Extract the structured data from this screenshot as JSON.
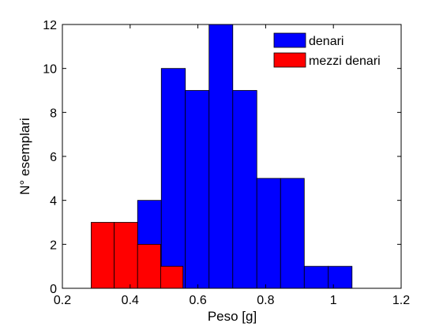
{
  "chart_data": {
    "type": "bar",
    "xlabel": "Peso [g]",
    "ylabel": "N° esemplari",
    "xlim": [
      0.2,
      1.2
    ],
    "ylim": [
      0,
      12
    ],
    "xticks": [
      "0.2",
      "0.4",
      "0.6",
      "0.8",
      "1",
      "1.2"
    ],
    "yticks": [
      "0",
      "2",
      "4",
      "6",
      "8",
      "10",
      "12"
    ],
    "grid": false,
    "legend_position": "top-right",
    "series": [
      {
        "name": "denari",
        "color": "#0000ff",
        "bins": [
          {
            "x0": 0.422,
            "x1": 0.492,
            "value": 4
          },
          {
            "x0": 0.492,
            "x1": 0.563,
            "value": 10
          },
          {
            "x0": 0.563,
            "x1": 0.633,
            "value": 9
          },
          {
            "x0": 0.633,
            "x1": 0.703,
            "value": 12
          },
          {
            "x0": 0.703,
            "x1": 0.774,
            "value": 9
          },
          {
            "x0": 0.774,
            "x1": 0.844,
            "value": 5
          },
          {
            "x0": 0.844,
            "x1": 0.914,
            "value": 5
          },
          {
            "x0": 0.914,
            "x1": 0.985,
            "value": 1
          },
          {
            "x0": 0.985,
            "x1": 1.055,
            "value": 1
          }
        ]
      },
      {
        "name": "mezzi denari",
        "color": "#ff0000",
        "bins": [
          {
            "x0": 0.285,
            "x1": 0.353,
            "value": 3
          },
          {
            "x0": 0.353,
            "x1": 0.422,
            "value": 3
          },
          {
            "x0": 0.422,
            "x1": 0.49,
            "value": 2
          },
          {
            "x0": 0.49,
            "x1": 0.556,
            "value": 1
          }
        ]
      }
    ]
  }
}
